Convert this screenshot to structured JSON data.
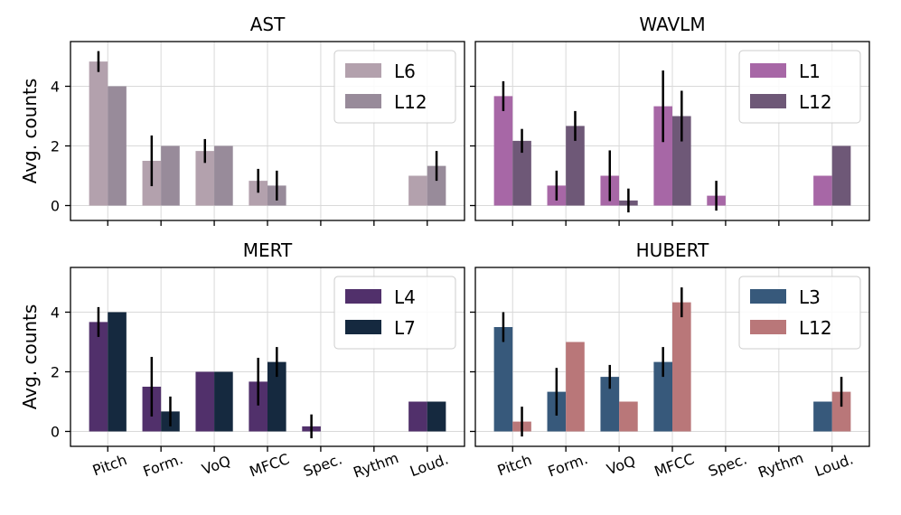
{
  "chart_data": {
    "type": "bar",
    "categories": [
      "Pitch",
      "Form.",
      "VoQ",
      "MFCC",
      "Spec.",
      "Rythm",
      "Loud."
    ],
    "ylabel": "Avg. counts",
    "ylim": [
      -0.5,
      5.5
    ],
    "yticks": [
      0,
      2,
      4
    ],
    "grid": true,
    "legend_position": "top-right",
    "panels": [
      {
        "title": "AST",
        "series": [
          {
            "name": "L6",
            "color": "#b3a1ad",
            "values": [
              4.83,
              1.5,
              1.83,
              0.83,
              0,
              0,
              1.0
            ],
            "errors": [
              0.35,
              0.85,
              0.4,
              0.4,
              0,
              0,
              0
            ]
          },
          {
            "name": "L12",
            "color": "#988b9a",
            "values": [
              4.0,
              2.0,
              2.0,
              0.67,
              0,
              0,
              1.33
            ],
            "errors": [
              0,
              0,
              0,
              0.5,
              0,
              0,
              0.5
            ]
          }
        ]
      },
      {
        "title": "WAVLM",
        "series": [
          {
            "name": "L1",
            "color": "#a767a6",
            "values": [
              3.67,
              0.67,
              1.0,
              3.33,
              0.33,
              0,
              1.0
            ],
            "errors": [
              0.5,
              0.5,
              0.85,
              1.2,
              0.5,
              0,
              0
            ]
          },
          {
            "name": "L12",
            "color": "#6e5877",
            "values": [
              2.17,
              2.67,
              0.17,
              3.0,
              0,
              0,
              2.0
            ],
            "errors": [
              0.4,
              0.5,
              0.4,
              0.85,
              0,
              0,
              0
            ]
          }
        ]
      },
      {
        "title": "MERT",
        "series": [
          {
            "name": "L4",
            "color": "#51306b",
            "values": [
              3.67,
              1.5,
              2.0,
              1.67,
              0.17,
              0,
              1.0
            ],
            "errors": [
              0.5,
              1.0,
              0,
              0.8,
              0.4,
              0,
              0
            ]
          },
          {
            "name": "L7",
            "color": "#15293f",
            "values": [
              4.0,
              0.67,
              2.0,
              2.33,
              0,
              0,
              1.0
            ],
            "errors": [
              0,
              0.5,
              0,
              0.5,
              0,
              0,
              0
            ]
          }
        ]
      },
      {
        "title": "HUBERT",
        "series": [
          {
            "name": "L3",
            "color": "#37597b",
            "values": [
              3.5,
              1.33,
              1.83,
              2.33,
              0,
              0,
              1.0
            ],
            "errors": [
              0.5,
              0.8,
              0.4,
              0.5,
              0,
              0,
              0
            ]
          },
          {
            "name": "L12",
            "color": "#b97779",
            "values": [
              0.33,
              3.0,
              1.0,
              4.33,
              0,
              0,
              1.33
            ],
            "errors": [
              0.5,
              0,
              0,
              0.5,
              0,
              0,
              0.5
            ]
          }
        ]
      }
    ]
  }
}
